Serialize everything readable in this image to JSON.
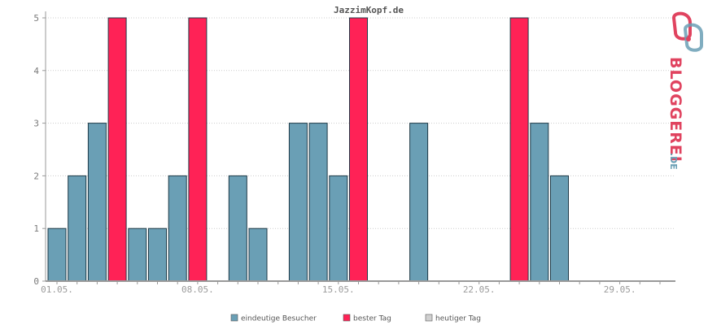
{
  "chart_data": {
    "type": "bar",
    "title": "JazzimKopf.de",
    "xlabel": "",
    "ylabel": "",
    "ylim": [
      0,
      5
    ],
    "yticks": [
      "0",
      "1",
      "2",
      "3",
      "4",
      "5"
    ],
    "x_tick_labels": [
      {
        "day": 1,
        "label": "01.05."
      },
      {
        "day": 8,
        "label": "08.05."
      },
      {
        "day": 15,
        "label": "15.05."
      },
      {
        "day": 22,
        "label": "22.05."
      },
      {
        "day": 29,
        "label": "29.05."
      }
    ],
    "days": [
      1,
      2,
      3,
      4,
      5,
      6,
      7,
      8,
      9,
      10,
      11,
      12,
      13,
      14,
      15,
      16,
      17,
      18,
      19,
      20,
      21,
      22,
      23,
      24,
      25,
      26,
      27,
      28,
      29,
      30,
      31
    ],
    "values": [
      1,
      2,
      3,
      5,
      1,
      1,
      2,
      5,
      0,
      2,
      1,
      0,
      3,
      3,
      2,
      5,
      0,
      0,
      3,
      0,
      0,
      0,
      0,
      5,
      3,
      2,
      0,
      0,
      0,
      0,
      0
    ],
    "best_day_flags": [
      0,
      0,
      0,
      1,
      0,
      0,
      0,
      1,
      0,
      0,
      0,
      0,
      0,
      0,
      0,
      1,
      0,
      0,
      0,
      0,
      0,
      0,
      0,
      1,
      0,
      0,
      0,
      0,
      0,
      0,
      0
    ],
    "grid": true,
    "legend_position": "bottom",
    "colors": {
      "visitors": "#6a9fb5",
      "best": "#ff2256",
      "today": "#d0d0d0",
      "bar_border": "#1f3a47",
      "axis": "#999999",
      "grid": "#cccccc"
    }
  },
  "legend": [
    {
      "label": "eindeutige Besucher",
      "color": "#6a9fb5"
    },
    {
      "label": "bester Tag",
      "color": "#ff2256"
    },
    {
      "label": "heutiger Tag",
      "color": "#d0d0d0"
    }
  ],
  "logo": {
    "text_main": "BLOGGEREI",
    "text_suffix": ".DE",
    "icon": "bloggerei-logo-icon"
  }
}
